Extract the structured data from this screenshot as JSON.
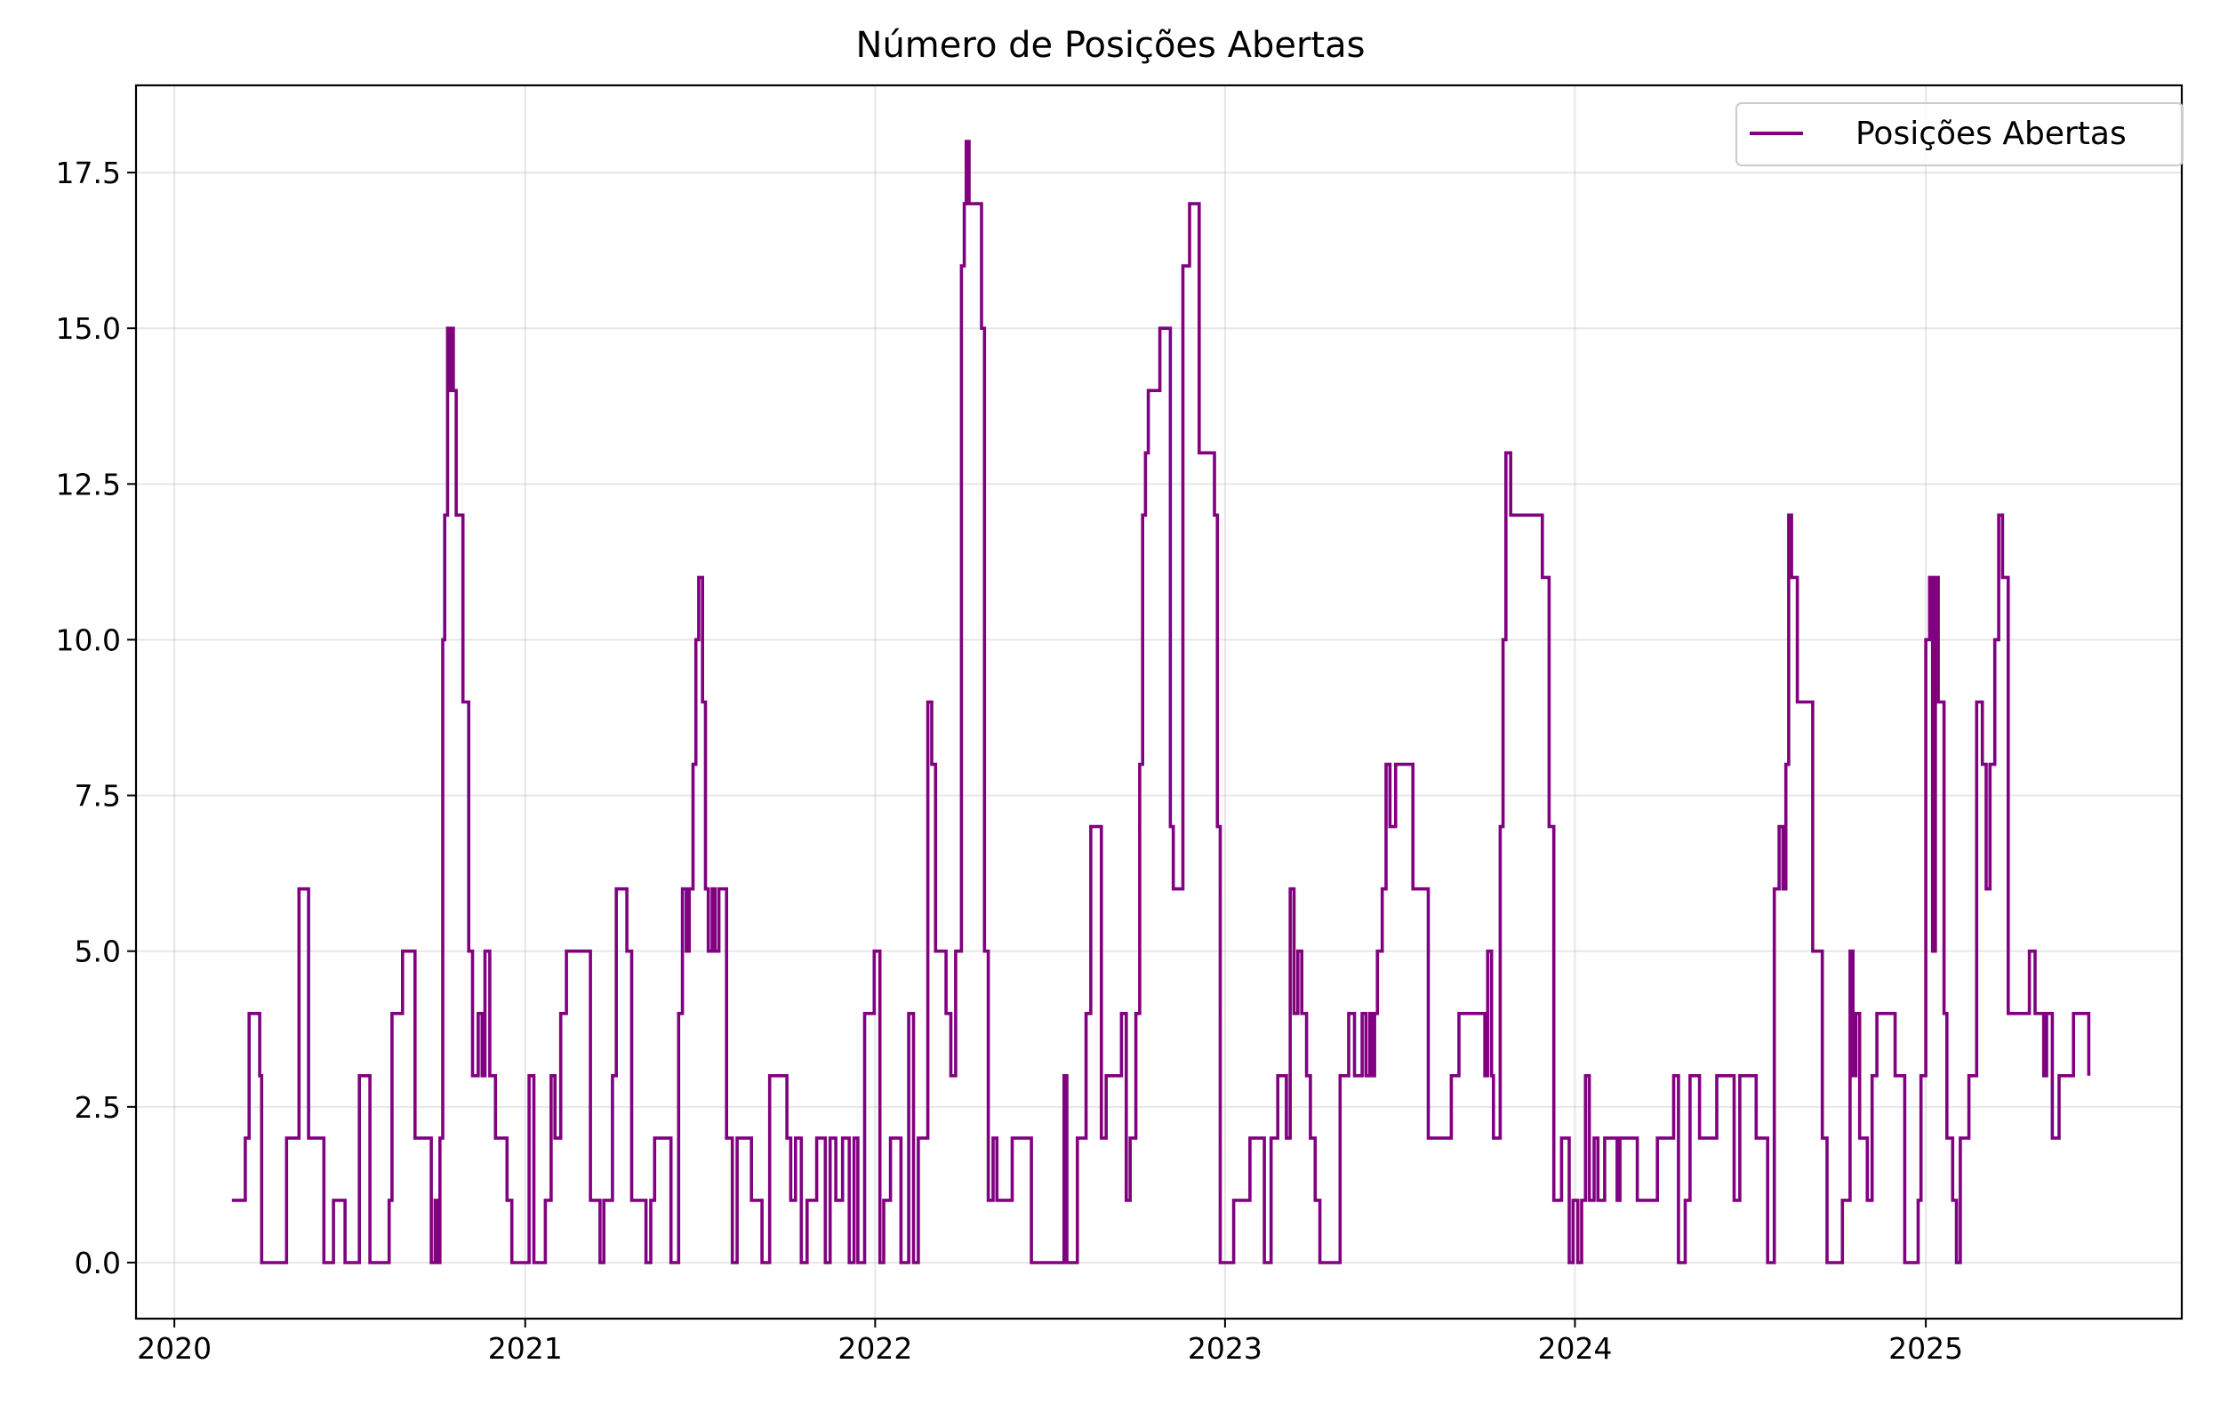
{
  "chart_data": {
    "type": "line",
    "title": "Número de Posições Abertas",
    "xlabel": "",
    "ylabel": "",
    "xlim": [
      "2019-11-22",
      "2025-09-25"
    ],
    "ylim": [
      -0.9,
      18.9
    ],
    "x_ticks": [
      "2020",
      "2021",
      "2022",
      "2023",
      "2024",
      "2025"
    ],
    "y_ticks": [
      "0.0",
      "2.5",
      "5.0",
      "7.5",
      "10.0",
      "12.5",
      "15.0",
      "17.5"
    ],
    "grid": true,
    "legend_position": "upper right",
    "step": true,
    "color": "#800080",
    "series": [
      {
        "name": "Posições Abertas",
        "points": [
          [
            "2020-03-01",
            1
          ],
          [
            "2020-03-15",
            2
          ],
          [
            "2020-03-19",
            4
          ],
          [
            "2020-03-30",
            3
          ],
          [
            "2020-04-01",
            0
          ],
          [
            "2020-04-27",
            2
          ],
          [
            "2020-05-10",
            6
          ],
          [
            "2020-05-20",
            2
          ],
          [
            "2020-06-05",
            0
          ],
          [
            "2020-06-15",
            1
          ],
          [
            "2020-06-27",
            0
          ],
          [
            "2020-07-12",
            3
          ],
          [
            "2020-07-23",
            0
          ],
          [
            "2020-08-12",
            1
          ],
          [
            "2020-08-15",
            4
          ],
          [
            "2020-08-26",
            5
          ],
          [
            "2020-09-08",
            2
          ],
          [
            "2020-09-25",
            0
          ],
          [
            "2020-09-29",
            1
          ],
          [
            "2020-10-01",
            0
          ],
          [
            "2020-10-04",
            2
          ],
          [
            "2020-10-07",
            10
          ],
          [
            "2020-10-09",
            12
          ],
          [
            "2020-10-12",
            15
          ],
          [
            "2020-10-14",
            14
          ],
          [
            "2020-10-16",
            15
          ],
          [
            "2020-10-18",
            14
          ],
          [
            "2020-10-21",
            12
          ],
          [
            "2020-10-28",
            9
          ],
          [
            "2020-11-03",
            5
          ],
          [
            "2020-11-07",
            3
          ],
          [
            "2020-11-13",
            4
          ],
          [
            "2020-11-17",
            3
          ],
          [
            "2020-11-20",
            5
          ],
          [
            "2020-11-25",
            3
          ],
          [
            "2020-12-01",
            2
          ],
          [
            "2020-12-13",
            1
          ],
          [
            "2020-12-18",
            0
          ],
          [
            "2021-01-05",
            3
          ],
          [
            "2021-01-10",
            0
          ],
          [
            "2021-01-22",
            1
          ],
          [
            "2021-01-28",
            3
          ],
          [
            "2021-02-01",
            2
          ],
          [
            "2021-02-07",
            4
          ],
          [
            "2021-02-13",
            5
          ],
          [
            "2021-03-10",
            1
          ],
          [
            "2021-03-20",
            0
          ],
          [
            "2021-03-24",
            1
          ],
          [
            "2021-04-02",
            3
          ],
          [
            "2021-04-06",
            6
          ],
          [
            "2021-04-17",
            5
          ],
          [
            "2021-04-22",
            1
          ],
          [
            "2021-05-07",
            0
          ],
          [
            "2021-05-12",
            1
          ],
          [
            "2021-05-16",
            2
          ],
          [
            "2021-06-02",
            0
          ],
          [
            "2021-06-10",
            4
          ],
          [
            "2021-06-14",
            6
          ],
          [
            "2021-06-18",
            5
          ],
          [
            "2021-06-21",
            6
          ],
          [
            "2021-06-25",
            8
          ],
          [
            "2021-06-28",
            10
          ],
          [
            "2021-07-01",
            11
          ],
          [
            "2021-07-05",
            9
          ],
          [
            "2021-07-08",
            6
          ],
          [
            "2021-07-11",
            5
          ],
          [
            "2021-07-15",
            6
          ],
          [
            "2021-07-18",
            5
          ],
          [
            "2021-07-22",
            6
          ],
          [
            "2021-07-30",
            2
          ],
          [
            "2021-08-05",
            0
          ],
          [
            "2021-08-10",
            2
          ],
          [
            "2021-08-25",
            1
          ],
          [
            "2021-09-05",
            0
          ],
          [
            "2021-09-13",
            3
          ],
          [
            "2021-10-01",
            2
          ],
          [
            "2021-10-05",
            1
          ],
          [
            "2021-10-10",
            2
          ],
          [
            "2021-10-16",
            0
          ],
          [
            "2021-10-22",
            1
          ],
          [
            "2021-11-01",
            2
          ],
          [
            "2021-11-10",
            0
          ],
          [
            "2021-11-15",
            2
          ],
          [
            "2021-11-21",
            1
          ],
          [
            "2021-11-28",
            2
          ],
          [
            "2021-12-05",
            0
          ],
          [
            "2021-12-10",
            2
          ],
          [
            "2021-12-14",
            0
          ],
          [
            "2021-12-21",
            4
          ],
          [
            "2021-12-31",
            5
          ],
          [
            "2022-01-06",
            0
          ],
          [
            "2022-01-10",
            1
          ],
          [
            "2022-01-17",
            2
          ],
          [
            "2022-01-28",
            0
          ],
          [
            "2022-02-05",
            4
          ],
          [
            "2022-02-10",
            0
          ],
          [
            "2022-02-15",
            2
          ],
          [
            "2022-02-25",
            9
          ],
          [
            "2022-03-01",
            8
          ],
          [
            "2022-03-05",
            5
          ],
          [
            "2022-03-16",
            4
          ],
          [
            "2022-03-21",
            3
          ],
          [
            "2022-03-26",
            5
          ],
          [
            "2022-04-01",
            16
          ],
          [
            "2022-04-04",
            17
          ],
          [
            "2022-04-06",
            18
          ],
          [
            "2022-04-09",
            17
          ],
          [
            "2022-04-22",
            15
          ],
          [
            "2022-04-25",
            5
          ],
          [
            "2022-04-29",
            1
          ],
          [
            "2022-05-04",
            2
          ],
          [
            "2022-05-08",
            1
          ],
          [
            "2022-05-24",
            2
          ],
          [
            "2022-06-13",
            0
          ],
          [
            "2022-07-17",
            3
          ],
          [
            "2022-07-20",
            0
          ],
          [
            "2022-07-31",
            2
          ],
          [
            "2022-08-09",
            4
          ],
          [
            "2022-08-14",
            7
          ],
          [
            "2022-08-25",
            2
          ],
          [
            "2022-08-30",
            3
          ],
          [
            "2022-09-15",
            4
          ],
          [
            "2022-09-20",
            1
          ],
          [
            "2022-09-24",
            2
          ],
          [
            "2022-09-30",
            4
          ],
          [
            "2022-10-04",
            8
          ],
          [
            "2022-10-07",
            12
          ],
          [
            "2022-10-10",
            13
          ],
          [
            "2022-10-13",
            14
          ],
          [
            "2022-10-25",
            15
          ],
          [
            "2022-11-05",
            7
          ],
          [
            "2022-11-08",
            6
          ],
          [
            "2022-11-18",
            16
          ],
          [
            "2022-11-25",
            17
          ],
          [
            "2022-12-05",
            13
          ],
          [
            "2022-12-21",
            12
          ],
          [
            "2022-12-24",
            7
          ],
          [
            "2022-12-27",
            0
          ],
          [
            "2023-01-10",
            1
          ],
          [
            "2023-01-27",
            2
          ],
          [
            "2023-02-06",
            2
          ],
          [
            "2023-02-11",
            0
          ],
          [
            "2023-02-18",
            2
          ],
          [
            "2023-02-25",
            3
          ],
          [
            "2023-03-06",
            2
          ],
          [
            "2023-03-10",
            6
          ],
          [
            "2023-03-14",
            4
          ],
          [
            "2023-03-18",
            5
          ],
          [
            "2023-03-22",
            4
          ],
          [
            "2023-03-27",
            3
          ],
          [
            "2023-03-31",
            2
          ],
          [
            "2023-04-05",
            1
          ],
          [
            "2023-04-10",
            0
          ],
          [
            "2023-05-01",
            3
          ],
          [
            "2023-05-10",
            4
          ],
          [
            "2023-05-16",
            3
          ],
          [
            "2023-05-24",
            4
          ],
          [
            "2023-05-28",
            3
          ],
          [
            "2023-06-01",
            4
          ],
          [
            "2023-06-03",
            3
          ],
          [
            "2023-06-06",
            4
          ],
          [
            "2023-06-09",
            5
          ],
          [
            "2023-06-14",
            6
          ],
          [
            "2023-06-18",
            8
          ],
          [
            "2023-06-22",
            7
          ],
          [
            "2023-06-28",
            8
          ],
          [
            "2023-07-16",
            6
          ],
          [
            "2023-08-01",
            2
          ],
          [
            "2023-08-25",
            3
          ],
          [
            "2023-09-02",
            4
          ],
          [
            "2023-09-29",
            3
          ],
          [
            "2023-10-02",
            5
          ],
          [
            "2023-10-06",
            3
          ],
          [
            "2023-10-08",
            2
          ],
          [
            "2023-10-15",
            7
          ],
          [
            "2023-10-18",
            10
          ],
          [
            "2023-10-21",
            13
          ],
          [
            "2023-10-26",
            12
          ],
          [
            "2023-11-28",
            11
          ],
          [
            "2023-12-05",
            7
          ],
          [
            "2023-12-10",
            1
          ],
          [
            "2023-12-18",
            2
          ],
          [
            "2023-12-26",
            0
          ],
          [
            "2023-12-30",
            1
          ],
          [
            "2024-01-04",
            0
          ],
          [
            "2024-01-08",
            1
          ],
          [
            "2024-01-12",
            3
          ],
          [
            "2024-01-16",
            1
          ],
          [
            "2024-01-21",
            2
          ],
          [
            "2024-01-25",
            1
          ],
          [
            "2024-02-01",
            2
          ],
          [
            "2024-02-14",
            1
          ],
          [
            "2024-02-17",
            2
          ],
          [
            "2024-03-06",
            1
          ],
          [
            "2024-03-13",
            1
          ],
          [
            "2024-03-27",
            2
          ],
          [
            "2024-04-13",
            3
          ],
          [
            "2024-04-18",
            0
          ],
          [
            "2024-04-25",
            1
          ],
          [
            "2024-04-30",
            3
          ],
          [
            "2024-05-10",
            2
          ],
          [
            "2024-05-28",
            3
          ],
          [
            "2024-06-15",
            1
          ],
          [
            "2024-06-21",
            3
          ],
          [
            "2024-07-08",
            2
          ],
          [
            "2024-07-20",
            0
          ],
          [
            "2024-07-27",
            6
          ],
          [
            "2024-08-01",
            7
          ],
          [
            "2024-08-05",
            6
          ],
          [
            "2024-08-08",
            8
          ],
          [
            "2024-08-11",
            12
          ],
          [
            "2024-08-14",
            11
          ],
          [
            "2024-08-20",
            9
          ],
          [
            "2024-09-05",
            5
          ],
          [
            "2024-09-15",
            2
          ],
          [
            "2024-09-20",
            0
          ],
          [
            "2024-10-06",
            1
          ],
          [
            "2024-10-14",
            5
          ],
          [
            "2024-10-17",
            3
          ],
          [
            "2024-10-20",
            4
          ],
          [
            "2024-10-24",
            2
          ],
          [
            "2024-11-01",
            1
          ],
          [
            "2024-11-06",
            3
          ],
          [
            "2024-11-11",
            4
          ],
          [
            "2024-11-30",
            3
          ],
          [
            "2024-12-10",
            0
          ],
          [
            "2024-12-24",
            1
          ],
          [
            "2024-12-27",
            3
          ],
          [
            "2025-01-01",
            10
          ],
          [
            "2025-01-05",
            11
          ],
          [
            "2025-01-08",
            5
          ],
          [
            "2025-01-11",
            11
          ],
          [
            "2025-01-14",
            9
          ],
          [
            "2025-01-20",
            4
          ],
          [
            "2025-01-23",
            2
          ],
          [
            "2025-01-29",
            1
          ],
          [
            "2025-02-02",
            0
          ],
          [
            "2025-02-06",
            2
          ],
          [
            "2025-02-15",
            3
          ],
          [
            "2025-02-23",
            9
          ],
          [
            "2025-03-01",
            8
          ],
          [
            "2025-03-05",
            6
          ],
          [
            "2025-03-09",
            8
          ],
          [
            "2025-03-14",
            10
          ],
          [
            "2025-03-18",
            12
          ],
          [
            "2025-03-22",
            11
          ],
          [
            "2025-03-28",
            4
          ],
          [
            "2025-04-02",
            4
          ],
          [
            "2025-04-19",
            5
          ],
          [
            "2025-04-25",
            4
          ],
          [
            "2025-05-04",
            3
          ],
          [
            "2025-05-07",
            4
          ],
          [
            "2025-05-13",
            2
          ],
          [
            "2025-05-20",
            3
          ],
          [
            "2025-06-04",
            4
          ],
          [
            "2025-06-20",
            3
          ]
        ]
      }
    ]
  }
}
